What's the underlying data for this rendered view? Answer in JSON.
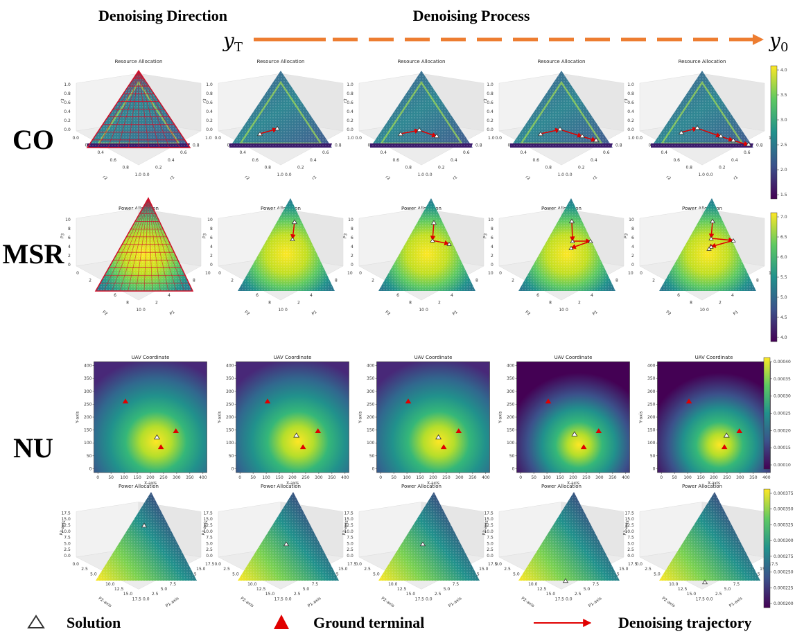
{
  "header": {
    "left_title": "Denoising Direction",
    "center_title": "Denoising Process",
    "start_symbol": "y",
    "start_sub": "T",
    "end_symbol": "y",
    "end_sub": "0"
  },
  "row_labels": [
    "CO",
    "MSR",
    "NU"
  ],
  "legend": {
    "solution": "Solution",
    "ground_terminal": "Ground terminal",
    "trajectory": "Denoising trajectory"
  },
  "colors": {
    "arrow": "#ed7d31",
    "trajectory": "#e00000",
    "terminal": "#e00000",
    "viridis": [
      "#440154",
      "#3b528b",
      "#21918c",
      "#5ec962",
      "#fde725"
    ]
  },
  "chart_data": {
    "co": {
      "title": "Resource Allocation",
      "type": "surface-3d",
      "x_axis_label": "r1",
      "y_axis_label": "r2",
      "z_axis_label": "r3",
      "axis_ticks": [
        "0.0",
        "0.2",
        "0.4",
        "0.6",
        "0.8",
        "1.0"
      ],
      "colorbar_ticks": [
        "1.5",
        "2.0",
        "2.5",
        "3.0",
        "3.5",
        "4.0"
      ],
      "colorbar_range": [
        1.4,
        4.2
      ]
    },
    "msr": {
      "title": "Power Allocation",
      "type": "surface-3d",
      "x_axis_label": "P1",
      "y_axis_label": "P2",
      "z_axis_label": "P3",
      "axis_ticks": [
        "0",
        "2",
        "4",
        "6",
        "8",
        "10"
      ],
      "colorbar_ticks": [
        "4.0",
        "4.5",
        "5.0",
        "5.5",
        "6.0",
        "6.5",
        "7.0"
      ],
      "colorbar_range": [
        3.9,
        7.05
      ]
    },
    "uav": {
      "title": "UAV Coordinate",
      "type": "heatmap",
      "xlabel": "X-axis",
      "ylabel": "Y-axis",
      "ticks": [
        "0",
        "50",
        "100",
        "150",
        "200",
        "250",
        "300",
        "350",
        "400"
      ],
      "xlim": [
        -15,
        415
      ],
      "ylim": [
        -15,
        415
      ],
      "colorbar_ticks": [
        "0.00010",
        "0.00015",
        "0.00020",
        "0.00025",
        "0.00030",
        "0.00035",
        "0.00040"
      ],
      "colorbar_range": [
        7e-05,
        0.00043
      ],
      "terminals": [
        [
          105,
          262
        ],
        [
          297,
          147
        ],
        [
          240,
          85
        ]
      ],
      "solutions": [
        [
          225,
          123
        ],
        [
          215,
          130
        ],
        [
          220,
          123
        ],
        [
          205,
          135
        ],
        [
          248,
          130
        ]
      ]
    },
    "nu": {
      "title": "Power Allocation",
      "type": "surface-3d",
      "x_axis_label": "P1-axis",
      "y_axis_label": "P2-axis",
      "z_axis_label": "P3-axis",
      "axis_ticks": [
        "0.0",
        "2.5",
        "5.0",
        "7.5",
        "10.0",
        "12.5",
        "15.0",
        "17.5"
      ],
      "colorbar_ticks": [
        "0.000200",
        "0.000225",
        "0.000250",
        "0.000275",
        "0.000300",
        "0.000325",
        "0.000350",
        "0.000375"
      ],
      "colorbar_range": [
        0.00018,
        0.00039
      ]
    }
  }
}
